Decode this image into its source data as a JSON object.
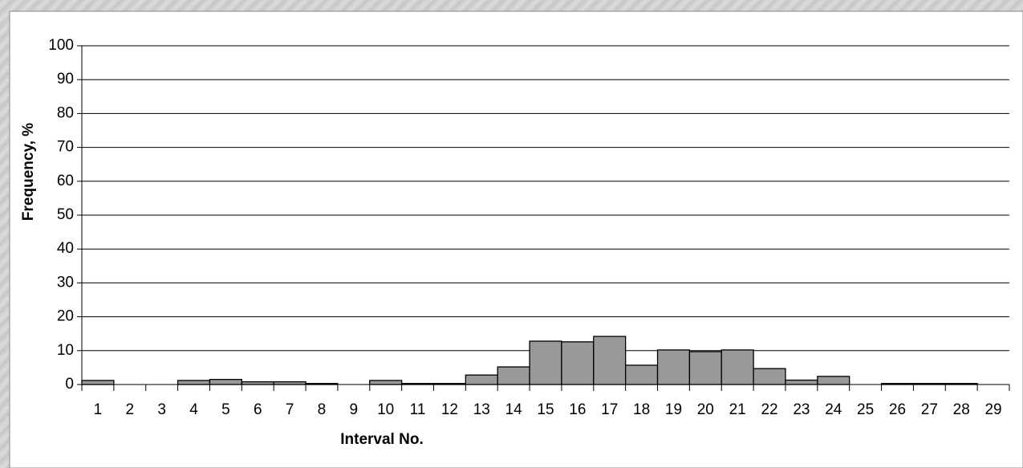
{
  "chart_data": {
    "type": "bar",
    "x_label": "Interval No.",
    "y_label": "Frequency, %",
    "categories": [
      "1",
      "2",
      "3",
      "4",
      "5",
      "6",
      "7",
      "8",
      "9",
      "10",
      "11",
      "12",
      "13",
      "14",
      "15",
      "16",
      "17",
      "18",
      "19",
      "20",
      "21",
      "22",
      "23",
      "24",
      "25",
      "26",
      "27",
      "28",
      "29"
    ],
    "values": [
      1.2,
      0,
      0,
      1.2,
      1.5,
      0.8,
      0.8,
      0.3,
      0,
      1.2,
      0.3,
      0.3,
      2.8,
      5.2,
      12.8,
      12.6,
      14.2,
      5.7,
      10.2,
      9.7,
      10.2,
      4.7,
      1.3,
      2.4,
      0,
      0.3,
      0.3,
      0.3,
      0
    ],
    "color": "#999999",
    "ylim": [
      0,
      100
    ],
    "yticks": [
      0,
      10,
      20,
      30,
      40,
      50,
      60,
      70,
      80,
      90,
      100
    ],
    "grid": true
  }
}
